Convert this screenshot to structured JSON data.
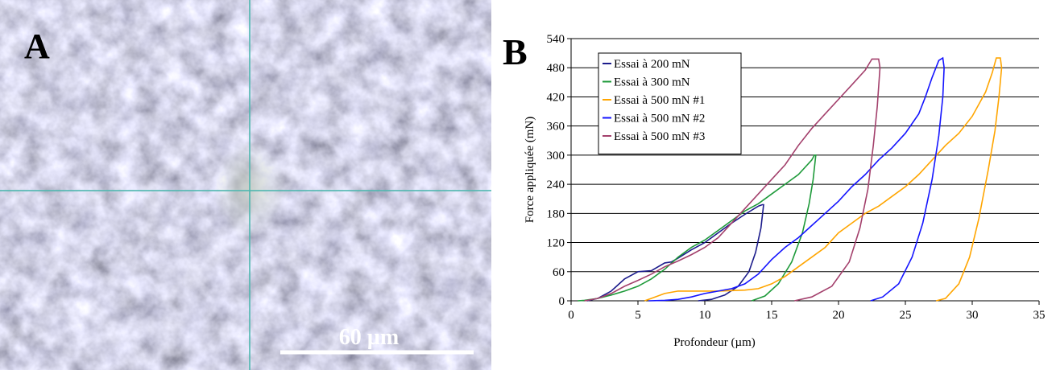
{
  "panel_a": {
    "label": "A",
    "scale_bar": "60 µm"
  },
  "chart_data": {
    "type": "line",
    "panel_label": "B",
    "xlabel": "Profondeur (µm)",
    "ylabel": "Force appliquée (mN)",
    "xlim": [
      0,
      35
    ],
    "xticks": [
      0,
      5,
      10,
      15,
      20,
      25,
      30,
      35
    ],
    "ylim": [
      0,
      540
    ],
    "yticks": [
      0,
      60,
      120,
      180,
      240,
      300,
      360,
      420,
      480,
      540
    ],
    "grid": true,
    "legend": "upper left",
    "series": [
      {
        "name": "Essai à 200 mN",
        "color": "#1c1c8c",
        "x": [
          1.2,
          2,
          3,
          4,
          5,
          6,
          7,
          7.5,
          8,
          9,
          10,
          11,
          12,
          13,
          14,
          14.3,
          14.4,
          14.2,
          13.8,
          13.3,
          12.5,
          11.5,
          10.5,
          9.5
        ],
        "values": [
          0,
          5,
          20,
          45,
          60,
          62,
          78,
          80,
          88,
          105,
          120,
          140,
          160,
          178,
          195,
          198,
          198,
          150,
          100,
          60,
          30,
          12,
          3,
          0
        ]
      },
      {
        "name": "Essai à 300 mN",
        "color": "#1e9a3a",
        "x": [
          0.5,
          1,
          2,
          3,
          4,
          5,
          6,
          7,
          8,
          9,
          10,
          11,
          12,
          13,
          14,
          15,
          16,
          17,
          18,
          18.2,
          18.3,
          18.1,
          17.8,
          17.3,
          16.5,
          15.5,
          14.5,
          13.5
        ],
        "values": [
          0,
          1,
          5,
          12,
          20,
          30,
          45,
          65,
          90,
          110,
          125,
          145,
          165,
          185,
          200,
          220,
          240,
          260,
          290,
          300,
          300,
          250,
          200,
          140,
          80,
          35,
          10,
          0
        ]
      },
      {
        "name": "Essai à 500 mN #1",
        "color": "#ffa500",
        "x": [
          5.5,
          6,
          7,
          8,
          9,
          10,
          11,
          12,
          13,
          14,
          15,
          16,
          17,
          18,
          19,
          20,
          21,
          22,
          23,
          24,
          25,
          26,
          27,
          28,
          29,
          30,
          31,
          31.5,
          31.8,
          32.1,
          32.2,
          32,
          31.7,
          31.2,
          30.5,
          29.8,
          29,
          28,
          27.3
        ],
        "values": [
          0,
          5,
          15,
          20,
          20,
          20,
          20,
          21,
          22,
          25,
          35,
          50,
          70,
          90,
          110,
          140,
          160,
          180,
          195,
          215,
          235,
          260,
          290,
          320,
          345,
          380,
          430,
          470,
          500,
          500,
          480,
          420,
          350,
          270,
          170,
          90,
          35,
          5,
          0
        ]
      },
      {
        "name": "Essai à 500 mN #2",
        "color": "#1414ff",
        "x": [
          5.8,
          7,
          8,
          9,
          10,
          11,
          12,
          13,
          14,
          15,
          16,
          17,
          18,
          19,
          20,
          21,
          22,
          23,
          24,
          25,
          26,
          26.5,
          27,
          27.5,
          27.8,
          27.9,
          27.8,
          27.5,
          27,
          26.3,
          25.5,
          24.5,
          23.3,
          22.4
        ],
        "values": [
          0,
          1,
          3,
          8,
          15,
          20,
          25,
          35,
          55,
          85,
          110,
          130,
          155,
          180,
          205,
          235,
          260,
          290,
          315,
          345,
          385,
          420,
          460,
          495,
          500,
          480,
          420,
          340,
          250,
          160,
          90,
          35,
          8,
          0
        ]
      },
      {
        "name": "Essai à 500 mN #3",
        "color": "#a3406c",
        "x": [
          1,
          2,
          3,
          4,
          5,
          6,
          7,
          8,
          9,
          10,
          11,
          12,
          13,
          14,
          15,
          16,
          17,
          18,
          19,
          20,
          21,
          22,
          22.5,
          23,
          23.1,
          22.9,
          22.6,
          22.2,
          21.6,
          20.8,
          19.5,
          18,
          16.7
        ],
        "values": [
          0,
          5,
          15,
          30,
          42,
          55,
          70,
          82,
          95,
          110,
          130,
          160,
          190,
          220,
          250,
          280,
          320,
          355,
          385,
          415,
          445,
          475,
          498,
          498,
          480,
          400,
          320,
          230,
          150,
          80,
          30,
          8,
          0
        ]
      }
    ]
  }
}
